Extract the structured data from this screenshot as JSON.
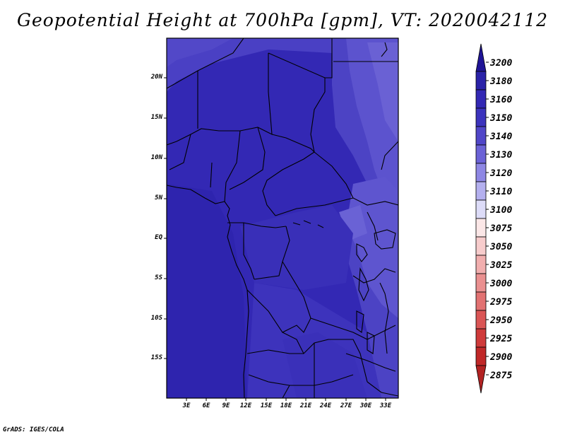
{
  "title": "Geopotential Height at 700hPa [gpm], VT: 2020042112",
  "credit": "GrADS: IGES/COLA",
  "map": {
    "lat_labels": [
      "20N",
      "15N",
      "10N",
      "5N",
      "EQ",
      "5S",
      "10S",
      "15S"
    ],
    "lon_labels": [
      "3E",
      "6E",
      "9E",
      "12E",
      "15E",
      "18E",
      "21E",
      "24E",
      "27E",
      "30E",
      "33E"
    ]
  },
  "colorbar": {
    "levels": [
      "3200",
      "3180",
      "3160",
      "3150",
      "3140",
      "3130",
      "3120",
      "3110",
      "3100",
      "3075",
      "3050",
      "3025",
      "3000",
      "2975",
      "2950",
      "2925",
      "2900",
      "2875"
    ],
    "colors": [
      "#1f1496",
      "#2a22a8",
      "#3328b4",
      "#3c33bd",
      "#5046c8",
      "#6b62d6",
      "#8e87e4",
      "#b4b0ef",
      "#dddcf8",
      "#fbe7e7",
      "#f7cccc",
      "#f1aeae",
      "#ea9090",
      "#e27272",
      "#da5555",
      "#cf3a3a",
      "#c02828",
      "#b22222"
    ]
  }
}
